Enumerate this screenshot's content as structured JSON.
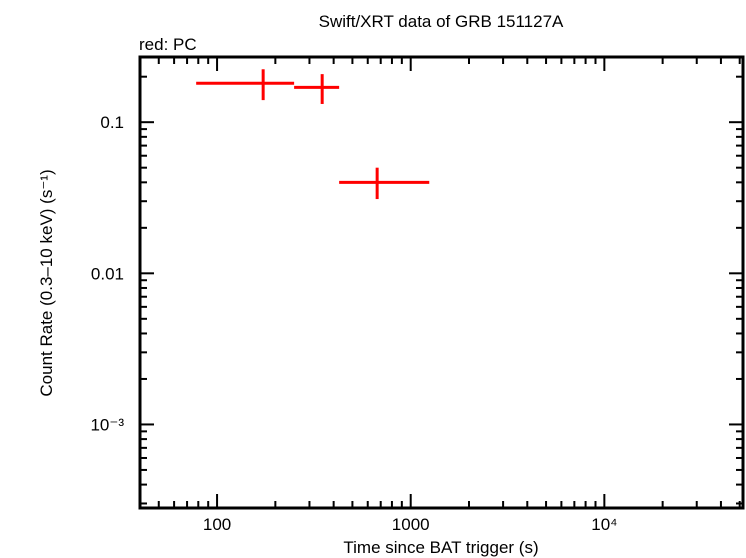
{
  "chart_data": {
    "type": "scatter",
    "title": "Swift/XRT data of GRB 151127A",
    "subtitle": "red: PC",
    "xlabel": "Time since BAT trigger (s)",
    "ylabel": "Count Rate (0.3–10 keV) (s⁻¹)",
    "xscale": "log",
    "yscale": "log",
    "xlim": [
      40,
      52000
    ],
    "ylim": [
      0.00028,
      0.27
    ],
    "grid": false,
    "x_ticks": [
      {
        "value": 100,
        "label": "100"
      },
      {
        "value": 1000,
        "label": "1000"
      },
      {
        "value": 10000,
        "label": "10⁴"
      }
    ],
    "y_ticks": [
      {
        "value": 0.1,
        "label": "0.1"
      },
      {
        "value": 0.01,
        "label": "0.01"
      },
      {
        "value": 0.001,
        "label": "10⁻³"
      }
    ],
    "series": [
      {
        "color": "#ff0000",
        "points": [
          {
            "x": 173,
            "xlo": 78,
            "xhi": 250,
            "y": 0.181,
            "ylo": 0.14,
            "yhi": 0.224
          },
          {
            "x": 349,
            "xlo": 250,
            "xhi": 427,
            "y": 0.17,
            "ylo": 0.132,
            "yhi": 0.208
          },
          {
            "x": 671,
            "xlo": 427,
            "xhi": 1247,
            "y": 0.04,
            "ylo": 0.031,
            "yhi": 0.05
          }
        ]
      }
    ]
  }
}
